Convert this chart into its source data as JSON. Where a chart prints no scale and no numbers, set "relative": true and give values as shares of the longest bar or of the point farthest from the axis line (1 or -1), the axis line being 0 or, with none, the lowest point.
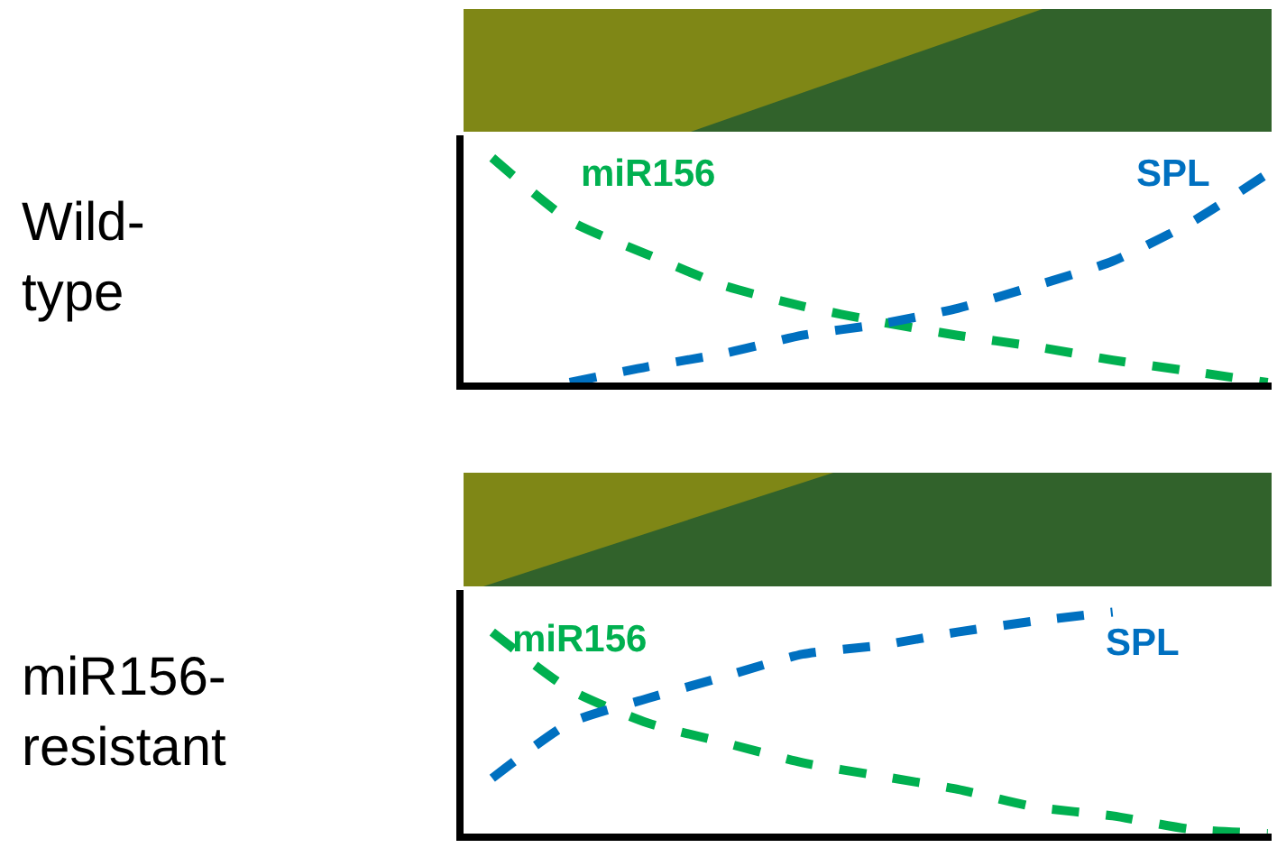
{
  "chart_data": [
    {
      "type": "line",
      "relative": true,
      "ylabel": "Wild-\ntype",
      "categories": [
        null,
        null,
        null,
        null,
        null,
        null,
        null,
        null,
        null,
        null,
        null
      ],
      "legend": false,
      "line_style": "dashed",
      "series": [
        {
          "name": "miR156",
          "color": "#00b050",
          "values": [
            1,
            0.72,
            0.57,
            0.43,
            0.34,
            0.27,
            0.21,
            0.16,
            0.1,
            0.05,
            0
          ]
        },
        {
          "name": "SPL",
          "color": "#0070c0",
          "values": [
            null,
            0,
            0.07,
            0.13,
            0.21,
            0.26,
            0.33,
            0.43,
            0.54,
            0.71,
            0.93
          ]
        }
      ]
    },
    {
      "type": "line",
      "relative": true,
      "ylabel": "miR156-\nresistant",
      "categories": [
        null,
        null,
        null,
        null,
        null,
        null,
        null,
        null,
        null,
        null,
        null
      ],
      "legend": false,
      "line_style": "dashed",
      "series": [
        {
          "name": "miR156",
          "color": "#00b050",
          "values": [
            0.91,
            0.65,
            0.5,
            0.41,
            0.32,
            0.26,
            0.2,
            0.12,
            0.08,
            0.02,
            0
          ]
        },
        {
          "name": "SPL",
          "color": "#0070c0",
          "values": [
            0.25,
            0.5,
            0.61,
            0.71,
            0.81,
            0.85,
            0.91,
            0.96,
            1,
            null,
            null
          ]
        }
      ]
    }
  ]
}
